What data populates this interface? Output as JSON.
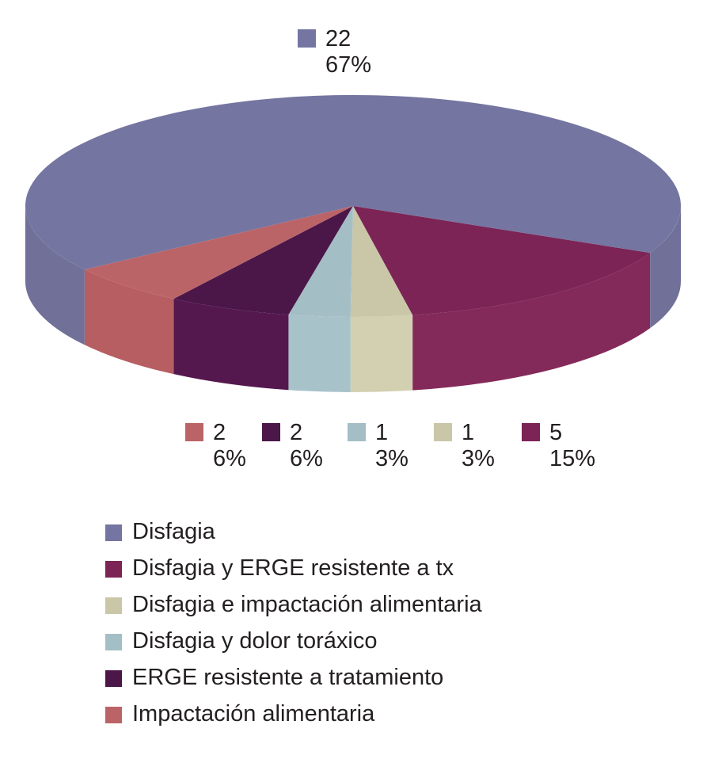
{
  "chart_data": {
    "type": "pie",
    "title": "",
    "slices": [
      {
        "name": "Disfagia",
        "value": 22,
        "percent": "67%",
        "value_label": "22",
        "color": "#7575a1",
        "side": "#707098"
      },
      {
        "name": "Disfagia y ERGE resistente a tx",
        "value": 5,
        "percent": "15%",
        "value_label": "5",
        "color": "#7b2455",
        "side": "#842a5a"
      },
      {
        "name": "Disfagia e impactación alimentaria",
        "value": 1,
        "percent": "3%",
        "value_label": "1",
        "color": "#c9c7a7",
        "side": "#d2d0b0"
      },
      {
        "name": "Disfagia y dolor toráxico",
        "value": 1,
        "percent": "3%",
        "value_label": "1",
        "color": "#a4bec6",
        "side": "#a8c2ca"
      },
      {
        "name": "ERGE resistente a tratamiento",
        "value": 2,
        "percent": "6%",
        "value_label": "2",
        "color": "#4b1749",
        "side": "#54184f"
      },
      {
        "name": "Impactación alimentaria",
        "value": 2,
        "percent": "6%",
        "value_label": "2",
        "color": "#bb6467",
        "side": "#b65e62"
      }
    ],
    "legend_position": "bottom"
  }
}
